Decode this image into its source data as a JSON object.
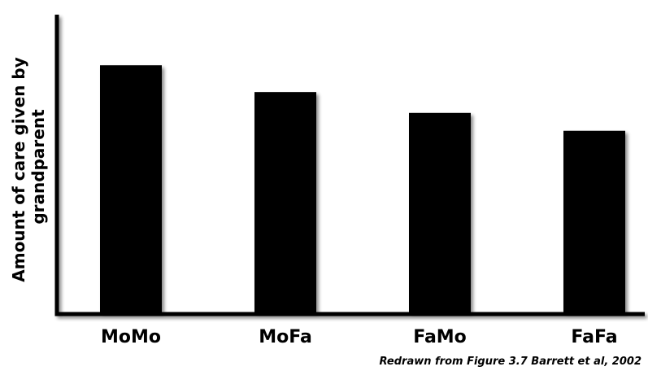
{
  "chart_data": {
    "type": "bar",
    "title": "",
    "ylabel": [
      "Amount of care given by",
      "grandparent"
    ],
    "xlabel": "",
    "categories": [
      "MoMo",
      "MoFa",
      "FaMo",
      "FaFa"
    ],
    "values": [
      83,
      74,
      67,
      61
    ],
    "ylim": [
      0,
      100
    ],
    "grid": false,
    "legend": "none",
    "bar_color": "#000000",
    "caption": "Redrawn from Figure 3.7 Barrett et al, 2002"
  }
}
